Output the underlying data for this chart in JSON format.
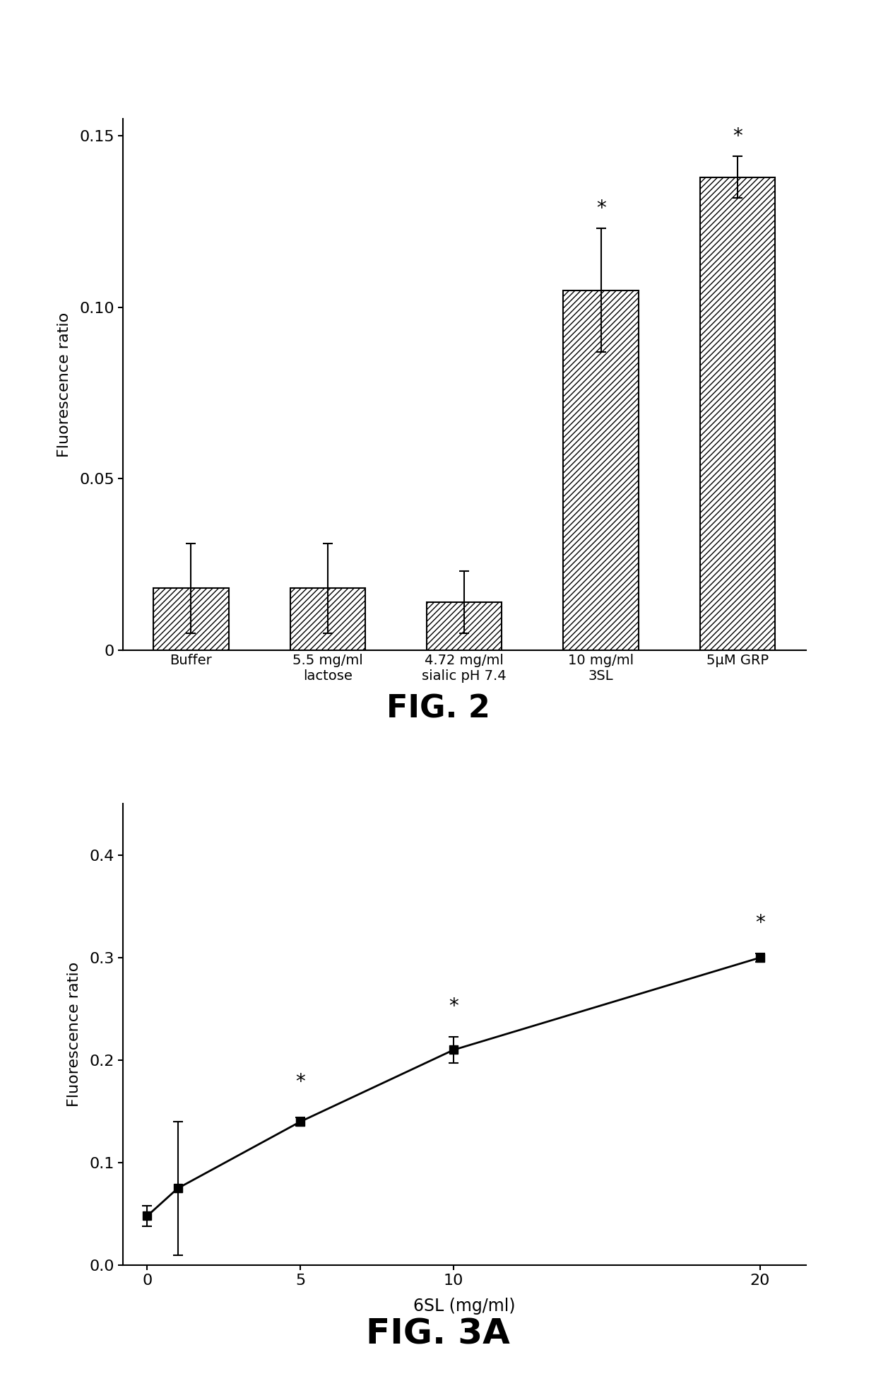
{
  "fig2": {
    "categories": [
      "Buffer",
      "5.5 mg/ml\nlactose",
      "4.72 mg/ml\nsialic pH 7.4",
      "10 mg/ml\n3SL",
      "5μM GRP"
    ],
    "values": [
      0.018,
      0.018,
      0.014,
      0.105,
      0.138
    ],
    "errors": [
      0.013,
      0.013,
      0.009,
      0.018,
      0.006
    ],
    "sig_stars": [
      false,
      false,
      false,
      true,
      true
    ],
    "ylabel": "Fluorescence ratio",
    "ylim": [
      0,
      0.155
    ],
    "yticks": [
      0,
      0.05,
      0.1,
      0.15
    ],
    "title": "FIG. 2",
    "hatch": "////"
  },
  "fig3a": {
    "x": [
      0,
      1,
      5,
      10,
      20
    ],
    "y": [
      0.048,
      0.075,
      0.14,
      0.21,
      0.3
    ],
    "errors": [
      0.01,
      0.065,
      0.004,
      0.013,
      0.004
    ],
    "sig_stars": [
      false,
      false,
      true,
      true,
      true
    ],
    "xlabel": "6SL (mg/ml)",
    "ylabel": "Fluorescence ratio",
    "ylim": [
      0.0,
      0.45
    ],
    "yticks": [
      0.0,
      0.1,
      0.2,
      0.3,
      0.4
    ],
    "xticks": [
      0,
      5,
      10,
      20
    ],
    "title": "FIG. 3A"
  },
  "background_color": "#ffffff",
  "text_color": "#000000"
}
